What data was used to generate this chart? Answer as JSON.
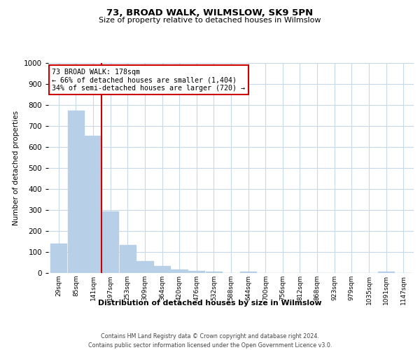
{
  "title": "73, BROAD WALK, WILMSLOW, SK9 5PN",
  "subtitle": "Size of property relative to detached houses in Wilmslow",
  "xlabel": "Distribution of detached houses by size in Wilmslow",
  "ylabel": "Number of detached properties",
  "bar_labels": [
    "29sqm",
    "85sqm",
    "141sqm",
    "197sqm",
    "253sqm",
    "309sqm",
    "364sqm",
    "420sqm",
    "476sqm",
    "532sqm",
    "588sqm",
    "644sqm",
    "700sqm",
    "756sqm",
    "812sqm",
    "868sqm",
    "923sqm",
    "979sqm",
    "1035sqm",
    "1091sqm",
    "1147sqm"
  ],
  "bar_values": [
    140,
    775,
    655,
    293,
    135,
    57,
    33,
    17,
    10,
    8,
    0,
    7,
    0,
    0,
    0,
    0,
    0,
    0,
    0,
    8,
    0
  ],
  "bar_color": "#b8cfe8",
  "property_line_x": 2.5,
  "annotation_title": "73 BROAD WALK: 178sqm",
  "annotation_line1": "← 66% of detached houses are smaller (1,404)",
  "annotation_line2": "34% of semi-detached houses are larger (720) →",
  "annotation_box_color": "#ffffff",
  "annotation_box_edge": "#cc0000",
  "property_line_color": "#cc0000",
  "ylim": [
    0,
    1000
  ],
  "yticks": [
    0,
    100,
    200,
    300,
    400,
    500,
    600,
    700,
    800,
    900,
    1000
  ],
  "footer_line1": "Contains HM Land Registry data © Crown copyright and database right 2024.",
  "footer_line2": "Contains public sector information licensed under the Open Government Licence v3.0.",
  "background_color": "#ffffff",
  "grid_color": "#c8d8e8"
}
